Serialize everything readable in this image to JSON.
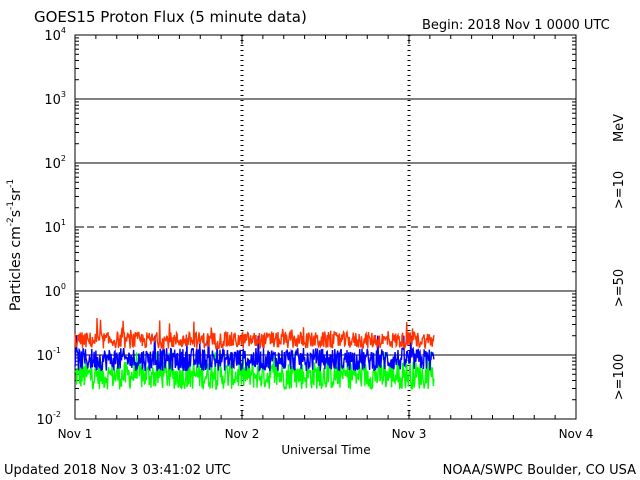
{
  "header": {
    "title": "GOES15 Proton Flux (5 minute data)",
    "begin": "Begin: 2018 Nov 1 0000 UTC"
  },
  "footer": {
    "updated": "Updated 2018 Nov  3 03:41:02 UTC",
    "credit": "NOAA/SWPC Boulder, CO USA"
  },
  "colors": {
    "ge10": "#ff3300",
    "ge50": "#0000ff",
    "ge100": "#00ff00"
  },
  "chart_data": {
    "type": "line",
    "title": "GOES15 Proton Flux (5 minute data)",
    "xlabel": "Universal Time",
    "ylabel": "Particles cm⁻²s⁻¹sr⁻¹",
    "ylabel_parts": [
      "Particles cm",
      "-2",
      "s",
      "-1",
      "sr",
      "-1"
    ],
    "yscale": "log",
    "ylim": [
      0.01,
      10000
    ],
    "x_range_days": [
      0,
      3
    ],
    "data_end_day": 2.15,
    "x_ticks": [
      "Nov 1",
      "Nov 2",
      "Nov 3",
      "Nov 4"
    ],
    "y_ticks": [
      {
        "base": "10",
        "exp": "4"
      },
      {
        "base": "10",
        "exp": "3"
      },
      {
        "base": "10",
        "exp": "2"
      },
      {
        "base": "10",
        "exp": "1"
      },
      {
        "base": "10",
        "exp": "0"
      },
      {
        "base": "10",
        "exp": "-1"
      },
      {
        "base": "10",
        "exp": "-2"
      }
    ],
    "legend_unit": "MeV",
    "series": [
      {
        "name": ">=10",
        "color": "#ff3300",
        "typical": 0.17,
        "spread": 0.13,
        "min": 0.11,
        "max": 0.45
      },
      {
        "name": ">=50",
        "color": "#0000ff",
        "typical": 0.085,
        "spread": 0.18,
        "min": 0.045,
        "max": 0.2
      },
      {
        "name": ">=100",
        "color": "#00ff00",
        "typical": 0.048,
        "spread": 0.22,
        "min": 0.024,
        "max": 0.11
      }
    ],
    "threshold_lines": [
      {
        "value": 10,
        "style": "dashed"
      },
      {
        "value": 1,
        "style": "solid"
      }
    ]
  }
}
